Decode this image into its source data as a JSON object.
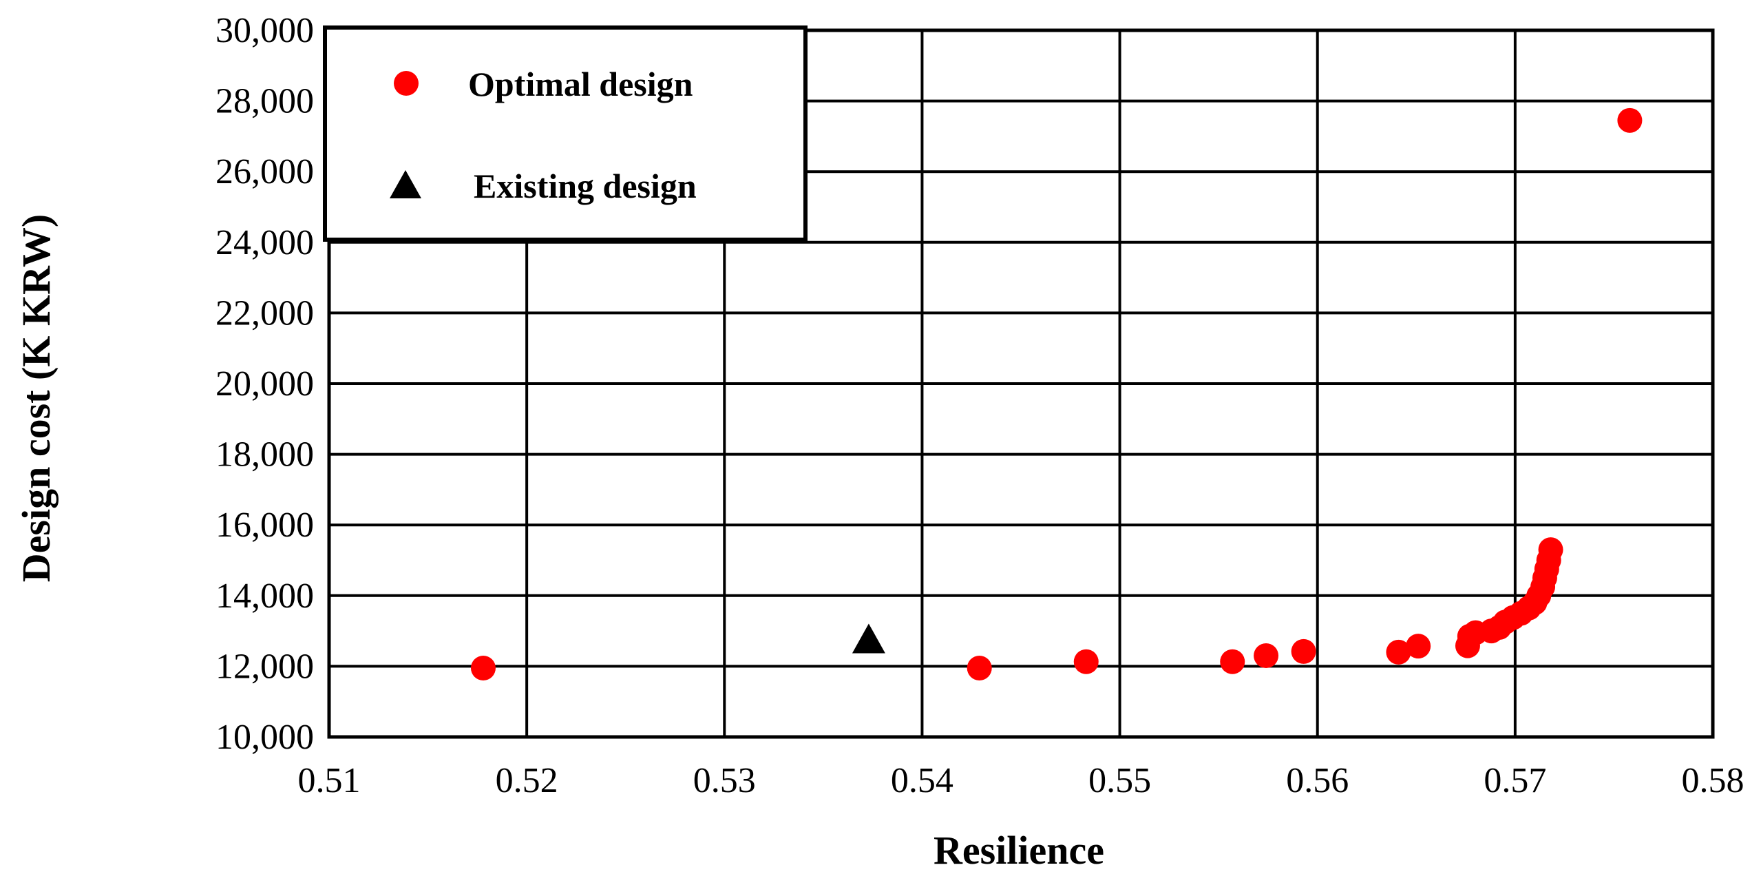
{
  "chart_data": {
    "type": "scatter",
    "title": "",
    "xlabel": "Resilience",
    "ylabel": "Design cost (K KRW)",
    "xlim": [
      0.51,
      0.58
    ],
    "ylim": [
      10000,
      30000
    ],
    "x_ticks": [
      0.51,
      0.52,
      0.53,
      0.54,
      0.55,
      0.56,
      0.57,
      0.58
    ],
    "x_tick_labels": [
      "0.51",
      "0.52",
      "0.53",
      "0.54",
      "0.55",
      "0.56",
      "0.57",
      "0.58"
    ],
    "y_ticks": [
      10000,
      12000,
      14000,
      16000,
      18000,
      20000,
      22000,
      24000,
      26000,
      28000,
      30000
    ],
    "y_tick_labels": [
      "10,000",
      "12,000",
      "14,000",
      "16,000",
      "18,000",
      "20,000",
      "22,000",
      "24,000",
      "26,000",
      "28,000",
      "30,000"
    ],
    "grid": true,
    "legend_position": "top-left",
    "series": [
      {
        "name": "Optimal design",
        "marker": "circle",
        "color": "#ff0000",
        "points": [
          [
            0.5178,
            11950
          ],
          [
            0.5429,
            11950
          ],
          [
            0.5483,
            12130
          ],
          [
            0.5557,
            12130
          ],
          [
            0.5574,
            12300
          ],
          [
            0.5593,
            12420
          ],
          [
            0.5641,
            12400
          ],
          [
            0.5651,
            12570
          ],
          [
            0.5676,
            12580
          ],
          [
            0.5677,
            12850
          ],
          [
            0.568,
            12950
          ],
          [
            0.5688,
            13000
          ],
          [
            0.5692,
            13100
          ],
          [
            0.5695,
            13250
          ],
          [
            0.5699,
            13380
          ],
          [
            0.5703,
            13500
          ],
          [
            0.5707,
            13650
          ],
          [
            0.571,
            13800
          ],
          [
            0.5712,
            14000
          ],
          [
            0.5714,
            14250
          ],
          [
            0.5715,
            14500
          ],
          [
            0.5716,
            14750
          ],
          [
            0.5717,
            15000
          ],
          [
            0.5718,
            15300
          ],
          [
            0.5758,
            27450
          ]
        ]
      },
      {
        "name": "Existing design",
        "marker": "triangle",
        "color": "#000000",
        "points": [
          [
            0.5373,
            12700
          ]
        ]
      }
    ]
  }
}
